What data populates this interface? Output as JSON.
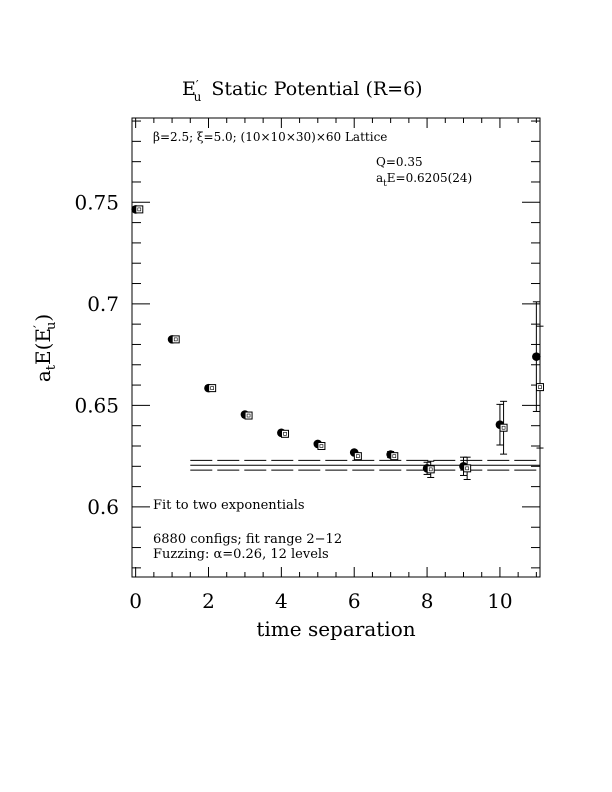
{
  "chart_data": {
    "type": "scatter",
    "title": "E′u Static Potential (R=6)",
    "title_main": "E",
    "title_prime": "′",
    "title_sub": "u",
    "title_rest": "Static Potential (R=6)",
    "xlabel": "time separation",
    "ylabel": "atE(E′u)",
    "ylabel_pre": "a",
    "ylabel_sub_t": "t",
    "ylabel_mid": "E(E",
    "ylabel_prime": "′",
    "ylabel_sub_u": "u",
    "ylabel_post": ")",
    "xlim": [
      -0.1,
      11.1
    ],
    "ylim": [
      0.5655,
      0.7915
    ],
    "x_ticks": [
      0,
      2,
      4,
      6,
      8,
      10
    ],
    "x_tick_labels": [
      "0",
      "2",
      "4",
      "6",
      "8",
      "10"
    ],
    "y_ticks": [
      0.6,
      0.65,
      0.7,
      0.75
    ],
    "y_tick_labels": [
      "0.6",
      "0.65",
      "0.7",
      "0.75"
    ],
    "annotations": {
      "lattice": "β=2.5; ξ=5.0; (10×10×30)×60 Lattice",
      "q_value": "Q=0.35",
      "energy_pre": "a",
      "energy_sub": "t",
      "energy_post": "E=0.6205(24)",
      "fit_label": "Fit to two exponentials",
      "configs": "6880 configs; fit range 2−12",
      "fuzzing": "Fuzzing: α=0.26, 12 levels"
    },
    "series": [
      {
        "marker": "filled-circle",
        "x": [
          0,
          1,
          2,
          3,
          4,
          5,
          6,
          7,
          8,
          9,
          10,
          11
        ],
        "y": [
          0.7465,
          0.6825,
          0.6585,
          0.6455,
          0.6365,
          0.631,
          0.6268,
          0.6258,
          0.619,
          0.62,
          0.6405,
          0.674
        ],
        "err": [
          0,
          0,
          0,
          0,
          0,
          0,
          0.0008,
          0.0015,
          0.003,
          0.0045,
          0.01,
          0.027
        ]
      },
      {
        "marker": "open-square",
        "x": [
          0.1,
          1.1,
          2.1,
          3.1,
          4.1,
          5.1,
          6.1,
          7.1,
          8.1,
          9.1,
          10.1,
          11.1
        ],
        "y": [
          0.7465,
          0.6825,
          0.6585,
          0.645,
          0.636,
          0.63,
          0.625,
          0.625,
          0.6185,
          0.619,
          0.639,
          0.659
        ],
        "err": [
          0,
          0,
          0,
          0,
          0,
          0,
          0,
          0.0015,
          0.004,
          0.0055,
          0.013,
          0.03
        ]
      }
    ],
    "fit": {
      "x_range": [
        1.5,
        11.1
      ],
      "center": 0.6205,
      "error": 0.0024
    }
  }
}
